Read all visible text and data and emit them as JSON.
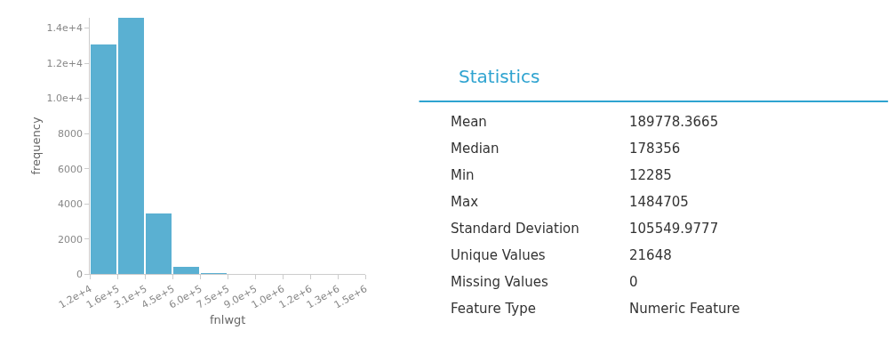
{
  "chart_data": [
    {
      "type": "histogram",
      "xlabel": "fnlwgt",
      "ylabel": "frequency",
      "color": "#5ab0d2",
      "bins": [
        12285,
        159527,
        306769,
        454011,
        601253,
        748495,
        895737,
        1042979,
        1190221,
        1337463,
        1484705
      ],
      "values": [
        13100,
        14600,
        3470,
        450,
        100,
        0,
        0,
        0,
        0,
        0
      ],
      "xlim": [
        12285,
        1484705
      ],
      "xticks": [
        {
          "value": 12285,
          "label": "1.2e+4"
        },
        {
          "value": 159527,
          "label": "1.6e+5"
        },
        {
          "value": 306769,
          "label": "3.1e+5"
        },
        {
          "value": 454011,
          "label": "4.5e+5"
        },
        {
          "value": 601253,
          "label": "6.0e+5"
        },
        {
          "value": 748495,
          "label": "7.5e+5"
        },
        {
          "value": 895737,
          "label": "9.0e+5"
        },
        {
          "value": 1042979,
          "label": "1.0e+6"
        },
        {
          "value": 1190221,
          "label": "1.2e+6"
        },
        {
          "value": 1337463,
          "label": "1.3e+6"
        },
        {
          "value": 1484705,
          "label": "1.5e+6"
        }
      ],
      "ylim": [
        0,
        14600
      ],
      "yticks": [
        0,
        2000,
        4000,
        6000,
        8000,
        {
          "value": 10000,
          "label": "1.0e+4"
        },
        {
          "value": 12000,
          "label": "1.2e+4"
        },
        {
          "value": 14000,
          "label": "1.4e+4"
        }
      ],
      "tick_labels": "xy"
    },
    {
      "type": "other",
      "title": "Statistics",
      "categories": [
        "Mean",
        "Median",
        "Min",
        "Max",
        "Standard Deviation",
        "Unique Values",
        "Missing Values",
        "Feature Type"
      ],
      "value_labels": [
        "189778.3665",
        "178356",
        "12285",
        "1484705",
        "105549.9777",
        "21648",
        "0",
        "Numeric Feature"
      ]
    }
  ]
}
